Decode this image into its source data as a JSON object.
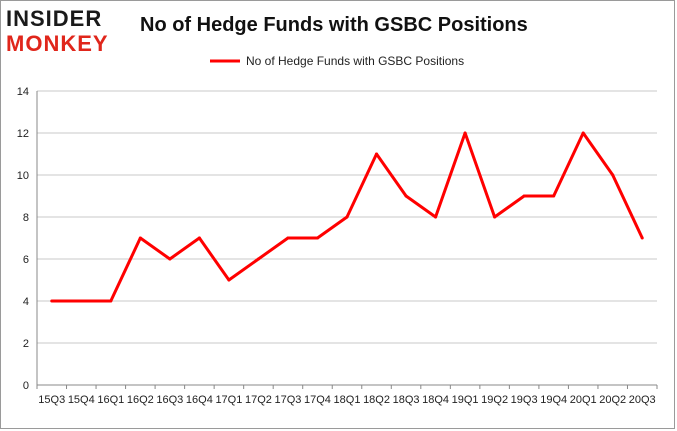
{
  "header": {
    "title": "No of Hedge Funds with GSBC Positions",
    "logo_line1": "INSIDER",
    "logo_line2": "MONKEY"
  },
  "chart_data": {
    "type": "line",
    "title": "No of Hedge Funds with GSBC Positions",
    "xlabel": "",
    "ylabel": "",
    "ylim": [
      0,
      14
    ],
    "yticks": [
      0,
      2,
      4,
      6,
      8,
      10,
      12,
      14
    ],
    "grid": true,
    "legend_position": "top-center",
    "categories": [
      "15Q3",
      "15Q4",
      "16Q1",
      "16Q2",
      "16Q3",
      "16Q4",
      "17Q1",
      "17Q2",
      "17Q3",
      "17Q4",
      "18Q1",
      "18Q2",
      "18Q3",
      "18Q4",
      "19Q1",
      "19Q2",
      "19Q3",
      "19Q4",
      "20Q1",
      "20Q2",
      "20Q3"
    ],
    "series": [
      {
        "name": "No of Hedge Funds with GSBC Positions",
        "color": "#ff0000",
        "values": [
          4,
          4,
          4,
          7,
          6,
          7,
          5,
          6,
          7,
          7,
          8,
          11,
          9,
          8,
          12,
          8,
          9,
          9,
          12,
          10,
          7
        ]
      }
    ]
  },
  "colors": {
    "line": "#ff0000",
    "logo_red": "#e0261b",
    "logo_dark": "#1a1a1a",
    "grid": "#c8c8c8"
  }
}
